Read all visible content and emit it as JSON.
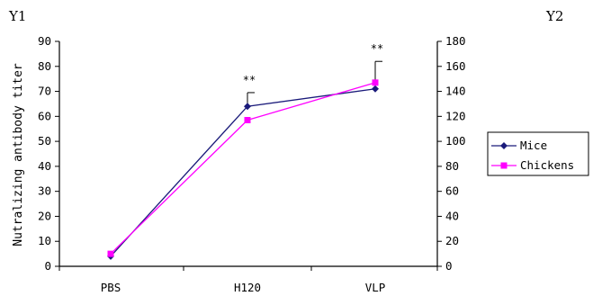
{
  "chart_data": {
    "type": "line",
    "categories": [
      "PBS",
      "H120",
      "VLP"
    ],
    "y1_label": "Y1",
    "y2_label": "Y2",
    "ylabel": "Nutralizing antibody titer",
    "xlabel": "",
    "ylim": [
      0,
      90
    ],
    "y_ticks": [
      0,
      10,
      20,
      30,
      40,
      50,
      60,
      70,
      80,
      90
    ],
    "y2lim": [
      0,
      180
    ],
    "y2_ticks": [
      0,
      20,
      40,
      60,
      80,
      100,
      120,
      140,
      160,
      180
    ],
    "legend_position": "right",
    "series": [
      {
        "name": "Mice",
        "axis": "y1",
        "color": "#1a1a7a",
        "marker": "diamond",
        "values": [
          4,
          64,
          71
        ],
        "error": [
          0,
          5.5,
          0
        ]
      },
      {
        "name": "Chickens",
        "axis": "y2",
        "color": "#ff00ff",
        "marker": "square",
        "values": [
          10,
          117,
          147
        ],
        "error": [
          0,
          0,
          17
        ]
      }
    ],
    "annotations": [
      {
        "category": "H120",
        "text": "**"
      },
      {
        "category": "VLP",
        "text": "**"
      }
    ]
  }
}
